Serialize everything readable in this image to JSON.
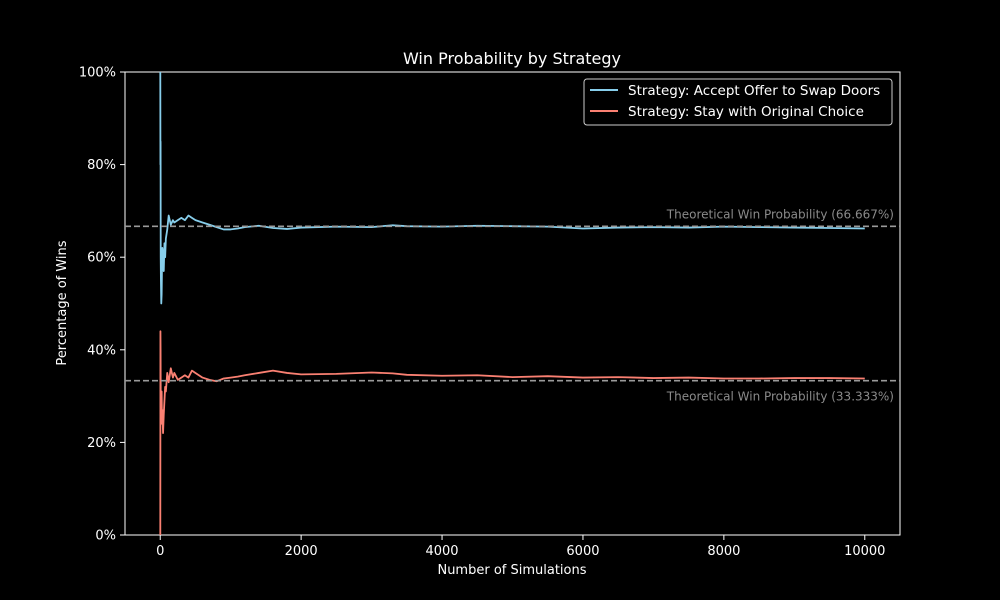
{
  "chart_data": {
    "type": "line",
    "title": "Win Probability by Strategy",
    "xlabel": "Number of Simulations",
    "ylabel": "Percentage of Wins",
    "xlim": [
      -500,
      10500
    ],
    "ylim": [
      0,
      100
    ],
    "x_ticks": [
      0,
      2000,
      4000,
      6000,
      8000,
      10000
    ],
    "y_ticks": [
      0,
      20,
      40,
      60,
      80,
      100
    ],
    "x_tick_labels": [
      "0",
      "2000",
      "4000",
      "6000",
      "8000",
      "10000"
    ],
    "y_tick_labels": [
      "0%",
      "20%",
      "40%",
      "60%",
      "80%",
      "100%"
    ],
    "grid": false,
    "legend_position": "top-right",
    "colors": {
      "background": "#000000",
      "axes": "#ffffff",
      "swap": "#87ceeb",
      "stay": "#fa8072",
      "reference": "#9a9a9a",
      "reference_text": "#8a8a8a"
    },
    "reference_lines": [
      {
        "y": 66.667,
        "label": "Theoretical Win Probability (66.667%)"
      },
      {
        "y": 33.333,
        "label": "Theoretical Win Probability (33.333%)"
      }
    ],
    "series": [
      {
        "name": "Strategy: Accept Offer to Swap Doors",
        "color": "#87ceeb",
        "x": [
          1,
          3,
          5,
          7,
          10,
          15,
          20,
          25,
          30,
          40,
          50,
          60,
          70,
          80,
          100,
          120,
          150,
          180,
          200,
          250,
          300,
          350,
          400,
          450,
          500,
          600,
          700,
          800,
          900,
          1000,
          1100,
          1200,
          1400,
          1600,
          1800,
          2000,
          2500,
          3000,
          3300,
          3500,
          4000,
          4500,
          5000,
          5500,
          6000,
          6500,
          7000,
          7500,
          8000,
          8500,
          9000,
          9500,
          10000
        ],
        "y": [
          100,
          80,
          85,
          60,
          55,
          50,
          52,
          58,
          62,
          60,
          57,
          63,
          60,
          64,
          66,
          69,
          67,
          68,
          67.5,
          68,
          68.5,
          68,
          69,
          68.5,
          68,
          67.5,
          67,
          66.5,
          66,
          66,
          66.2,
          66.5,
          66.8,
          66.3,
          66.1,
          66.4,
          66.6,
          66.5,
          66.9,
          66.7,
          66.6,
          66.8,
          66.7,
          66.6,
          66.2,
          66.4,
          66.5,
          66.4,
          66.6,
          66.5,
          66.4,
          66.3,
          66.2
        ]
      },
      {
        "name": "Strategy: Stay with Original Choice",
        "color": "#fa8072",
        "x": [
          1,
          2,
          3,
          5,
          7,
          10,
          15,
          20,
          25,
          30,
          40,
          50,
          60,
          70,
          80,
          100,
          120,
          150,
          180,
          200,
          250,
          300,
          350,
          400,
          450,
          500,
          600,
          700,
          800,
          900,
          1000,
          1100,
          1200,
          1400,
          1600,
          1800,
          2000,
          2500,
          3000,
          3300,
          3500,
          4000,
          4500,
          5000,
          5500,
          6000,
          6500,
          7000,
          7500,
          8000,
          8500,
          9000,
          9500,
          10000
        ],
        "y": [
          0,
          20,
          44,
          40,
          30,
          25,
          28,
          31,
          24,
          27,
          22,
          26,
          29,
          32,
          31,
          35,
          33,
          36,
          34,
          35,
          33.5,
          34,
          34.5,
          34,
          35.5,
          35,
          34,
          33.5,
          33.2,
          33.8,
          34,
          34.2,
          34.5,
          35,
          35.5,
          35,
          34.7,
          34.8,
          35.1,
          34.9,
          34.6,
          34.4,
          34.5,
          34.1,
          34.3,
          34.0,
          34.1,
          33.9,
          34.0,
          33.8,
          33.8,
          33.9,
          33.9,
          33.8
        ]
      }
    ]
  }
}
